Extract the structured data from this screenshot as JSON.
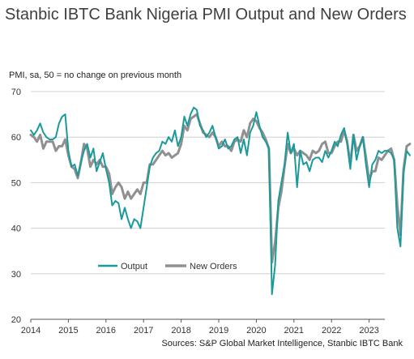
{
  "header": {
    "title": "Stanbic IBTC Bank Nigeria PMI Output and New Orders",
    "subtitle": "PMI, sa, 50 = no change on previous month",
    "source": "Sources: S&P Global Market Intelligence, Stanbic IBTC Bank"
  },
  "chart_data": {
    "type": "line",
    "title": "Stanbic IBTC Bank Nigeria PMI Output and New Orders",
    "ylabel": "PMI, sa, 50 = no change on previous month",
    "xlabel": "",
    "ylim": [
      20,
      70
    ],
    "yticks": [
      20,
      30,
      40,
      50,
      60,
      70
    ],
    "xticks": [
      "2014",
      "2015",
      "2016",
      "2017",
      "2018",
      "2019",
      "2020",
      "2021",
      "2022",
      "2023"
    ],
    "grid": "horizontal",
    "legend": "bottom-left inside",
    "x_start": "2014-01",
    "x_frequency": "monthly",
    "series": [
      {
        "name": "Output",
        "color": "#1a9a9a",
        "values": [
          61.5,
          60.5,
          61.5,
          63.0,
          61.0,
          60.0,
          59.5,
          59.5,
          60.0,
          63.0,
          64.5,
          65.0,
          57.0,
          53.5,
          54.0,
          51.5,
          54.5,
          57.0,
          58.5,
          55.5,
          57.5,
          52.5,
          54.5,
          56.5,
          53.0,
          50.0,
          45.0,
          46.0,
          45.5,
          42.0,
          44.5,
          42.0,
          40.0,
          42.0,
          41.5,
          40.0,
          44.5,
          49.0,
          53.5,
          55.5,
          56.5,
          57.0,
          59.0,
          58.5,
          60.0,
          59.0,
          61.5,
          58.0,
          60.0,
          64.5,
          62.5,
          65.0,
          66.5,
          66.0,
          62.5,
          61.5,
          60.0,
          61.0,
          62.5,
          60.0,
          57.5,
          58.0,
          59.5,
          57.5,
          58.0,
          59.5,
          60.0,
          56.5,
          59.5,
          56.0,
          61.0,
          62.5,
          65.5,
          62.5,
          60.0,
          59.0,
          57.5,
          25.5,
          32.0,
          46.0,
          50.0,
          54.0,
          61.0,
          56.5,
          58.5,
          49.0,
          57.0,
          54.0,
          54.5,
          52.5,
          55.0,
          55.5,
          55.5,
          54.5,
          57.0,
          55.5,
          57.0,
          59.0,
          58.0,
          60.5,
          62.0,
          58.5,
          53.0,
          60.5,
          55.0,
          58.0,
          60.0,
          54.0,
          49.0,
          54.0,
          55.0,
          57.0,
          56.5,
          57.0,
          57.0,
          56.5,
          55.0,
          40.0,
          36.0,
          52.0,
          57.0,
          56.0
        ]
      },
      {
        "name": "New Orders",
        "color": "#909090",
        "values": [
          60.5,
          60.0,
          59.0,
          60.5,
          57.5,
          59.0,
          59.0,
          59.0,
          57.0,
          58.0,
          58.0,
          59.5,
          56.0,
          53.5,
          53.0,
          51.0,
          54.5,
          58.5,
          57.5,
          53.5,
          55.0,
          54.0,
          55.0,
          53.5,
          53.5,
          52.0,
          47.5,
          49.0,
          50.0,
          49.0,
          46.5,
          48.0,
          46.5,
          47.5,
          48.5,
          47.5,
          50.0,
          50.0,
          54.0,
          54.0,
          55.0,
          56.0,
          57.0,
          56.0,
          56.5,
          55.5,
          56.0,
          56.5,
          58.5,
          62.5,
          61.5,
          64.0,
          64.5,
          65.0,
          63.0,
          61.0,
          60.5,
          60.0,
          61.0,
          60.0,
          58.0,
          59.0,
          58.0,
          58.0,
          57.0,
          59.0,
          59.5,
          59.0,
          61.5,
          60.0,
          63.0,
          64.0,
          63.5,
          62.0,
          61.0,
          59.5,
          57.5,
          32.5,
          37.0,
          44.5,
          48.0,
          53.5,
          58.5,
          56.5,
          57.5,
          56.0,
          57.0,
          56.5,
          56.0,
          55.0,
          57.0,
          56.5,
          57.0,
          58.5,
          59.0,
          56.5,
          56.5,
          58.0,
          59.0,
          59.0,
          61.5,
          59.0,
          54.0,
          60.5,
          57.0,
          58.0,
          60.0,
          55.5,
          50.5,
          52.5,
          52.5,
          55.5,
          55.0,
          56.0,
          57.0,
          57.5,
          55.0,
          45.0,
          38.5,
          53.0,
          58.0,
          58.5
        ]
      }
    ]
  }
}
